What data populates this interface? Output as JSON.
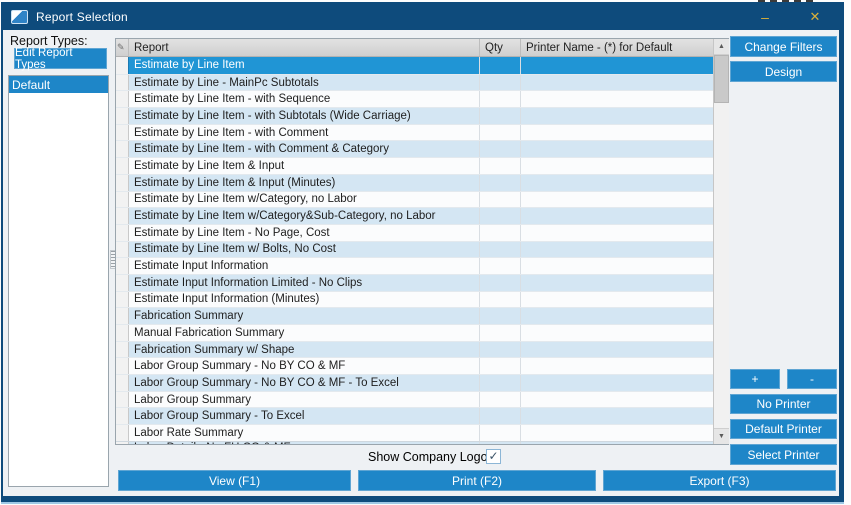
{
  "window": {
    "title": "Report Selection",
    "minimize_icon": "–",
    "close_icon": "✕"
  },
  "left_panel": {
    "label": "Report Types:",
    "edit_button_label": "Edit Report Types",
    "report_types": [
      "Default"
    ],
    "selected_type": "Default"
  },
  "table": {
    "indicator_icon": "✎",
    "columns": [
      "Report",
      "Qty",
      "Printer Name - (*) for Default"
    ],
    "selected_index": 0,
    "rows": [
      "Estimate by Line Item",
      "Estimate by Line - MainPc Subtotals",
      "Estimate by Line Item - with Sequence",
      "Estimate by Line Item - with Subtotals (Wide Carriage)",
      "Estimate by Line Item - with Comment",
      "Estimate by Line Item - with Comment & Category",
      "Estimate by Line Item & Input",
      "Estimate by Line Item & Input (Minutes)",
      "Estimate by Line Item w/Category, no Labor",
      "Estimate by Line Item w/Category&Sub-Category, no Labor",
      "Estimate by Line Item - No Page, Cost",
      "Estimate by Line Item w/ Bolts, No Cost",
      "Estimate Input Information",
      "Estimate Input Information Limited - No Clips",
      "Estimate Input Information (Minutes)",
      "Fabrication Summary",
      "Manual Fabrication Summary",
      "Fabrication Summary w/ Shape",
      "Labor Group Summary - No BY CO & MF",
      "Labor Group Summary - No BY CO & MF - To Excel",
      "Labor Group Summary",
      "Labor Group Summary - To Excel",
      "Labor Rate Summary"
    ],
    "partial_row": "Labor Detail - No FH CO & MF"
  },
  "scrollbar": {
    "up_icon": "▲",
    "down_icon": "▼"
  },
  "right_panel": {
    "change_filters": "Change Filters",
    "design": "Design",
    "plus": "+",
    "minus": "-",
    "no_printer": "No Printer",
    "default_printer": "Default Printer",
    "select_printer": "Select Printer"
  },
  "footer": {
    "show_logo_label": "Show Company Logo:",
    "checkbox_checked": true,
    "check_icon": "✓",
    "view_button": "View (F1)",
    "print_button": "Print (F2)",
    "export_button": "Export (F3)"
  },
  "colors": {
    "titlebar": "#0e4b7c",
    "window_border": "#0e4b7c",
    "accent_button": "#1e86c8",
    "selected_row": "#2095d5",
    "alt_row": "#d4e6f3",
    "header_bg": "#d8d8d8",
    "caption_glyphs": "#d9b13b"
  }
}
